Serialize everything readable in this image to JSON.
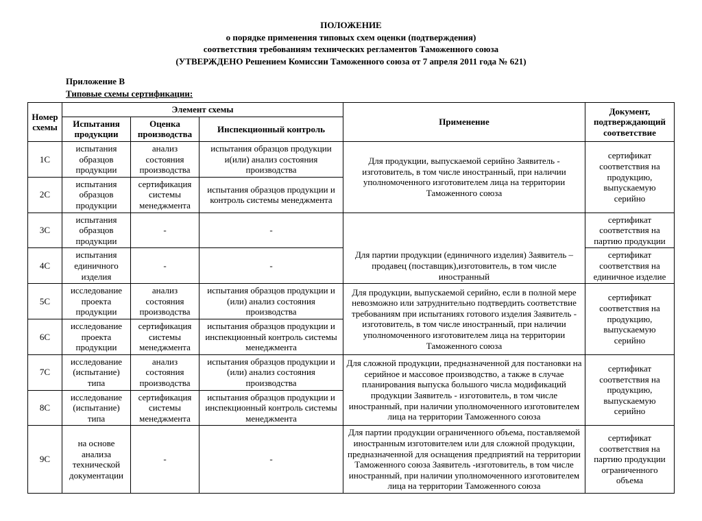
{
  "title": {
    "line1": "ПОЛОЖЕНИЕ",
    "line2": "о порядке применения типовых схем оценки (подтверждения)",
    "line3": "соответствия требованиям технических регламентов Таможенного союза",
    "line4": "(УТВЕРЖДЕНО Решением Комиссии Таможенного союза от 7 апреля 2011 года № 621)"
  },
  "appendix": {
    "line1": "Приложение В",
    "line2": "Типовые схемы сертификации:"
  },
  "headers": {
    "num": "Номер схемы",
    "element": "Элемент схемы",
    "test": "Испытания продукции",
    "eval": "Оценка производства",
    "insp": "Инспекционный контроль",
    "app": "Применение",
    "doc": "Документ, подтверждающий соответствие"
  },
  "cells": {
    "r1_num": "1С",
    "r1_test": "испытания образцов продукции",
    "r1_eval": "анализ состояния производства",
    "r1_insp": "испытания образцов продукции и(или) анализ состояния производства",
    "r2_num": "2С",
    "r2_test": "испытания образцов продукции",
    "r2_eval": "сертификация системы менеджмента",
    "r2_insp": "испытания образцов продукции и контроль системы менеджмента",
    "app_1_2": "Для продукции, выпускаемой серийно Заявитель - изготовитель, в том числе иностранный, при наличии уполномоченного изготовителем лица на территории Таможенного союза",
    "doc_1_2": "сертификат соответствия на продукцию, выпускаемую серийно",
    "r3_num": "3С",
    "r3_test": "испытания образцов продукции",
    "r3_eval": "-",
    "r3_insp": "-",
    "doc_3": "сертификат соответствия на партию продукции",
    "r4_num": "4С",
    "r4_test": "испытания единичного изделия",
    "r4_eval": "-",
    "r4_insp": "-",
    "doc_4": "сертификат соответствия на единичное изделие",
    "app_3_4": "Для партии продукции (единичного изделия) Заявитель – продавец (поставщик),изготовитель, в том числе иностранный",
    "r5_num": "5С",
    "r5_test": "исследование проекта продукции",
    "r5_eval": "анализ состояния производства",
    "r5_insp": "испытания образцов продукции и (или) анализ состояния производства",
    "r6_num": "6С",
    "r6_test": "исследование проекта продукции",
    "r6_eval": "сертификация системы менеджмента",
    "r6_insp": "испытания образцов продукции и инспекционный контроль системы менеджмента",
    "app_5_6": "Для продукции, выпускаемой серийно, если в полной мере невозможно или затруднительно подтвердить соответствие требованиям при испытаниях готового изделия Заявитель - изготовитель, в том числе иностранный, при наличии уполномоченного изготовителем лица на территории Таможенного союза",
    "doc_5_6": "сертификат соответствия на продукцию, выпускаемую серийно",
    "r7_num": "7С",
    "r7_test": "исследование (испытание) типа",
    "r7_eval": "анализ состояния производства",
    "r7_insp": "испытания образцов продукции и (или) анализ состояния производства",
    "r8_num": "8С",
    "r8_test": "исследование (испытание) типа",
    "r8_eval": "сертификация системы менеджмента",
    "r8_insp": "испытания образцов продукции и инспекционный контроль системы менеджмента",
    "app_7_8": "Для сложной продукции, предназначенной для постановки на серийное и массовое производство, а также в случае планирования выпуска большого числа модификаций продукции Заявитель - изготовитель, в том числе иностранный, при наличии уполномоченного изготовителем лица на территории Таможенного союза",
    "doc_7_8": "сертификат соответствия на продукцию, выпускаемую серийно",
    "r9_num": "9С",
    "r9_test": "на основе анализа технической документации",
    "r9_eval": "-",
    "r9_insp": "-",
    "app_9": "Для партии продукции ограниченного объема, поставляемой иностранным изготовителем или для сложной продукции, предназначенной для оснащения предприятий на территории Таможенного союза Заявитель -изготовитель, в том числе иностранный, при наличии уполномоченного изготовителем лица на территории Таможенного союза",
    "doc_9": "сертификат соответствия на партию продукции ограниченного объема"
  }
}
